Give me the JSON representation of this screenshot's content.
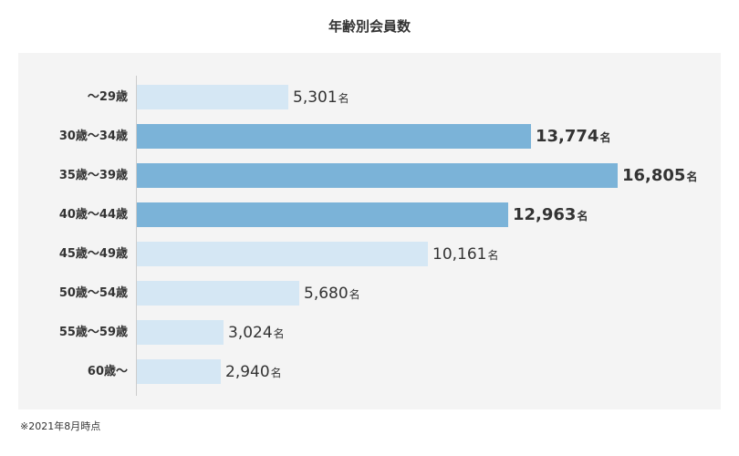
{
  "chart_data": {
    "type": "bar",
    "orientation": "horizontal",
    "title": "年齢別会員数",
    "unit": "名",
    "categories": [
      "～29歳",
      "30歳～34歳",
      "35歳～39歳",
      "40歳～44歳",
      "45歳～49歳",
      "50歳～54歳",
      "55歳～59歳",
      "60歳～"
    ],
    "values": [
      5301,
      13774,
      16805,
      12963,
      10161,
      5680,
      3024,
      2940
    ],
    "value_labels": [
      "5,301",
      "13,774",
      "16,805",
      "12,963",
      "10,161",
      "5,680",
      "3,024",
      "2,940"
    ],
    "highlighted": [
      false,
      true,
      true,
      true,
      false,
      false,
      false,
      false
    ],
    "colors": {
      "highlight": "#7bb3d8",
      "normal": "#d5e7f4"
    },
    "xlim": [
      0,
      16805
    ],
    "grid": false,
    "legend": "none"
  },
  "footnote": "※2021年8月時点"
}
